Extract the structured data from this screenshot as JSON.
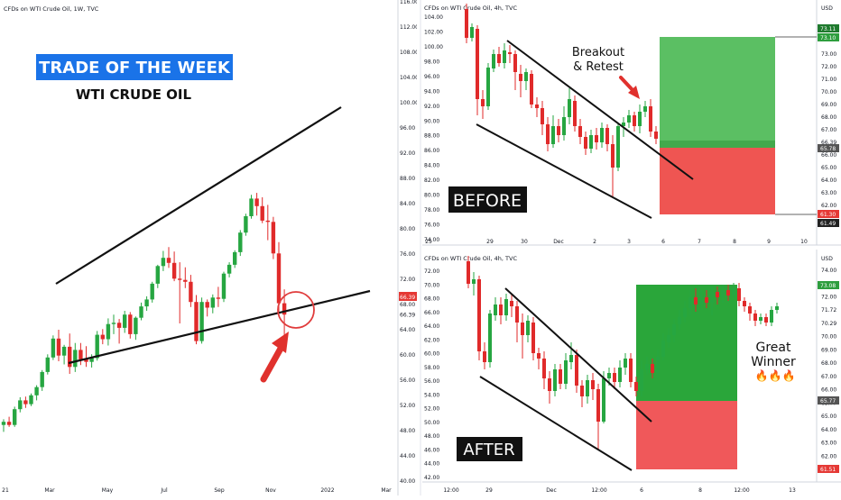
{
  "chart_data": [
    {
      "type": "candlestick",
      "name": "left-weekly",
      "title": "CFDs on WTI Crude Oil, 1W, TVC",
      "price_axis": [
        "116.00",
        "112.00",
        "108.00",
        "104.00",
        "100.00",
        "96.00",
        "92.00",
        "88.00",
        "84.00",
        "80.00",
        "76.00",
        "72.00",
        "68.00",
        "66.39",
        "64.00",
        "60.00",
        "56.00",
        "52.00",
        "48.00",
        "44.00",
        "40.00"
      ],
      "ylim": [
        40,
        116
      ],
      "x_ticks": [
        "21",
        "Mar",
        "May",
        "Jul",
        "Sep",
        "Nov",
        "2022",
        "Mar"
      ],
      "annotations": {
        "banner": "TRADE OF THE WEEK",
        "subtitle": "WTI CRUDE OIL"
      },
      "last_price": 66.39,
      "candles": [
        [
          48.9,
          49.8,
          47.8,
          49.4
        ],
        [
          49.4,
          50.2,
          48.6,
          48.9
        ],
        [
          48.9,
          51.8,
          48.6,
          51.4
        ],
        [
          51.4,
          53.3,
          50.9,
          52.8
        ],
        [
          52.8,
          53.4,
          51.6,
          52.2
        ],
        [
          52.2,
          53.9,
          51.9,
          53.6
        ],
        [
          53.6,
          55.2,
          52.8,
          54.9
        ],
        [
          54.9,
          57.6,
          54.3,
          57.3
        ],
        [
          57.3,
          60.1,
          56.9,
          59.6
        ],
        [
          59.6,
          63.1,
          59.2,
          62.6
        ],
        [
          62.6,
          64.0,
          59.0,
          59.9
        ],
        [
          59.9,
          61.6,
          58.5,
          61.3
        ],
        [
          61.3,
          63.4,
          57.0,
          58.1
        ],
        [
          58.1,
          61.9,
          57.3,
          60.8
        ],
        [
          60.8,
          61.9,
          58.4,
          59.3
        ],
        [
          59.3,
          61.4,
          58.1,
          58.9
        ],
        [
          58.9,
          60.1,
          58.0,
          59.5
        ],
        [
          59.5,
          63.8,
          59.1,
          63.2
        ],
        [
          63.2,
          64.1,
          61.7,
          62.5
        ],
        [
          62.5,
          65.8,
          61.5,
          64.9
        ],
        [
          64.9,
          66.4,
          63.3,
          65.1
        ],
        [
          65.1,
          65.7,
          61.8,
          64.3
        ],
        [
          64.3,
          67.0,
          63.5,
          66.4
        ],
        [
          66.4,
          66.8,
          62.6,
          63.3
        ],
        [
          63.3,
          66.1,
          62.4,
          65.9
        ],
        [
          65.9,
          68.3,
          65.5,
          67.7
        ],
        [
          67.7,
          69.3,
          67.0,
          68.8
        ],
        [
          68.8,
          71.6,
          68.3,
          71.3
        ],
        [
          71.3,
          74.3,
          70.6,
          74.1
        ],
        [
          74.1,
          76.5,
          73.3,
          75.4
        ],
        [
          75.4,
          77.1,
          73.8,
          74.6
        ],
        [
          74.6,
          76.4,
          71.7,
          72.1
        ],
        [
          72.1,
          74.7,
          65.0,
          71.9
        ],
        [
          71.9,
          73.9,
          70.6,
          71.6
        ],
        [
          71.6,
          72.7,
          67.6,
          68.4
        ],
        [
          68.4,
          69.5,
          61.7,
          62.2
        ],
        [
          62.2,
          69.1,
          61.8,
          68.4
        ],
        [
          68.4,
          68.8,
          66.1,
          67.5
        ],
        [
          67.5,
          69.6,
          66.6,
          69.1
        ],
        [
          69.1,
          70.8,
          67.6,
          68.9
        ],
        [
          68.9,
          73.2,
          68.4,
          72.9
        ],
        [
          72.9,
          74.7,
          72.3,
          74.3
        ],
        [
          74.3,
          76.6,
          73.8,
          76.3
        ],
        [
          76.3,
          79.8,
          75.7,
          79.4
        ],
        [
          79.4,
          82.4,
          78.9,
          82.0
        ],
        [
          82.0,
          85.4,
          81.6,
          84.8
        ],
        [
          84.8,
          85.7,
          82.1,
          83.6
        ],
        [
          83.6,
          85.0,
          80.9,
          81.3
        ],
        [
          81.3,
          83.8,
          78.2,
          81.1
        ],
        [
          81.1,
          81.9,
          75.2,
          76.1
        ],
        [
          76.1,
          77.9,
          66.1,
          68.2
        ],
        [
          68.2,
          70.4,
          62.9,
          66.4
        ]
      ]
    },
    {
      "type": "candlestick",
      "name": "top-right-before",
      "title": "CFDs on WTI Crude Oil, 4h, TVC",
      "currency": "USD",
      "price_axis": [
        "104.00",
        "102.00",
        "100.00",
        "98.00",
        "96.00",
        "94.00",
        "92.00",
        "90.00",
        "88.00",
        "86.00",
        "84.00",
        "82.00",
        "80.00",
        "78.00",
        "76.00",
        "74.00"
      ],
      "right_axis": [
        "73.00",
        "72.00",
        "71.00",
        "70.00",
        "69.00",
        "68.00",
        "67.00",
        "66.39",
        "66.00",
        "65.00",
        "64.00",
        "63.00",
        "62.00"
      ],
      "right_markers": {
        "take_profit": "73.11",
        "take_profit_2": "73.10",
        "entry": "65.78",
        "stop": "61.30",
        "stop_2": "61.49"
      },
      "x_ticks": [
        "25",
        "29",
        "30",
        "Dec",
        "2",
        "3",
        "6",
        "7",
        "8",
        "9",
        "10"
      ],
      "annotations": {
        "label": "BEFORE",
        "note_1": "Breakout",
        "note_2": "& Retest"
      }
    },
    {
      "type": "candlestick",
      "name": "bottom-right-after",
      "title": "CFDs on WTI Crude Oil, 4h, TVC",
      "currency": "USD",
      "price_axis": [
        "72.00",
        "70.00",
        "68.00",
        "66.00",
        "64.00",
        "62.00",
        "60.00",
        "58.00",
        "56.00",
        "54.00",
        "52.00",
        "50.00",
        "48.00",
        "46.00",
        "44.00",
        "42.00"
      ],
      "right_axis": [
        "74.00",
        "73.08",
        "72.00",
        "71.72",
        "70.29",
        "70.00",
        "69.00",
        "68.00",
        "67.00",
        "66.00",
        "65.77",
        "65.00",
        "64.00",
        "63.00",
        "62.00",
        "61.51"
      ],
      "right_markers": {
        "take_profit": "73.08",
        "entry": "65.77",
        "stop": "61.51"
      },
      "x_ticks": [
        "12:00",
        "29",
        "Dec",
        "12:00",
        "6",
        "8",
        "12:00",
        "13"
      ],
      "annotations": {
        "label": "AFTER",
        "note_1": "Great",
        "note_2": "Winner",
        "emoji": "🔥🔥🔥"
      }
    }
  ]
}
